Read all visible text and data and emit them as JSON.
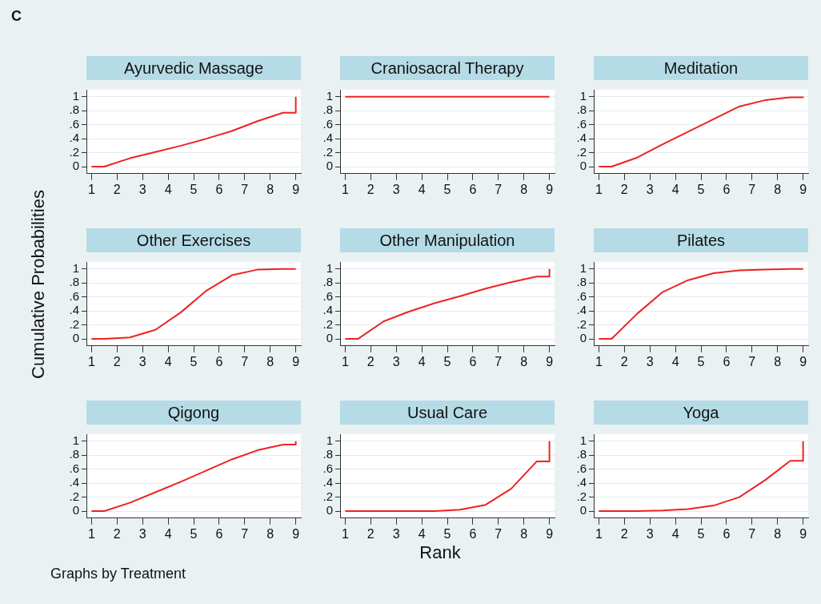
{
  "chart_data": [
    {
      "type": "line",
      "title": "Ayurvedic Massage",
      "annotations": [
        "C"
      ],
      "xlim": [
        0.8,
        9.2
      ],
      "xticks": [
        1,
        2,
        3,
        4,
        5,
        6,
        7,
        8,
        9
      ],
      "ylim": [
        -0.1,
        1.1
      ],
      "yticks": [
        {
          "value": 0,
          "label": "0"
        },
        {
          "value": 0.2,
          "label": ".2"
        },
        {
          "value": 0.4,
          "label": ".4"
        },
        {
          "value": 0.6,
          "label": ".6"
        },
        {
          "value": 0.8,
          "label": ".8"
        },
        {
          "value": 1,
          "label": "1"
        }
      ],
      "grid": "y",
      "legend": false,
      "marker": "none",
      "series": [
        {
          "color": "#ee2222",
          "x": [
            1,
            1.5,
            2.5,
            3.5,
            4.5,
            5.5,
            6.5,
            7.5,
            8.5,
            9,
            9
          ],
          "values": [
            0,
            0,
            0.12,
            0.21,
            0.3,
            0.4,
            0.51,
            0.65,
            0.77,
            0.77,
            1
          ]
        }
      ]
    },
    {
      "type": "line",
      "title": "Craniosacral Therapy",
      "xlim": [
        0.8,
        9.2
      ],
      "xticks": [
        1,
        2,
        3,
        4,
        5,
        6,
        7,
        8,
        9
      ],
      "ylim": [
        -0.1,
        1.1
      ],
      "yticks": [
        {
          "value": 0,
          "label": "0"
        },
        {
          "value": 0.2,
          "label": ".2"
        },
        {
          "value": 0.4,
          "label": ".4"
        },
        {
          "value": 0.6,
          "label": ".6"
        },
        {
          "value": 0.8,
          "label": ".8"
        },
        {
          "value": 1,
          "label": "1"
        }
      ],
      "grid": "y",
      "legend": false,
      "marker": "none",
      "series": [
        {
          "color": "#ee2222",
          "x": [
            1,
            1.5,
            2.5,
            3.5,
            4.5,
            5.5,
            6.5,
            7.5,
            8.5,
            9
          ],
          "values": [
            1,
            1,
            1,
            1,
            1,
            1,
            1,
            1,
            1,
            1
          ]
        }
      ]
    },
    {
      "type": "line",
      "title": "Meditation",
      "xlim": [
        0.8,
        9.2
      ],
      "xticks": [
        1,
        2,
        3,
        4,
        5,
        6,
        7,
        8,
        9
      ],
      "ylim": [
        -0.1,
        1.1
      ],
      "yticks": [
        {
          "value": 0,
          "label": "0"
        },
        {
          "value": 0.2,
          "label": ".2"
        },
        {
          "value": 0.4,
          "label": ".4"
        },
        {
          "value": 0.6,
          "label": ".6"
        },
        {
          "value": 0.8,
          "label": ".8"
        },
        {
          "value": 1,
          "label": "1"
        }
      ],
      "grid": "y",
      "legend": false,
      "marker": "none",
      "series": [
        {
          "color": "#ee2222",
          "x": [
            1,
            1.5,
            2.5,
            3.5,
            4.5,
            5.5,
            6.5,
            7.5,
            8.5,
            9,
            9
          ],
          "values": [
            0,
            0,
            0.13,
            0.32,
            0.5,
            0.68,
            0.86,
            0.95,
            0.99,
            0.99,
            1
          ]
        }
      ]
    },
    {
      "type": "line",
      "title": "Other Exercises",
      "ylabel": "Cumulative Probabilities",
      "xlim": [
        0.8,
        9.2
      ],
      "xticks": [
        1,
        2,
        3,
        4,
        5,
        6,
        7,
        8,
        9
      ],
      "ylim": [
        -0.1,
        1.1
      ],
      "yticks": [
        {
          "value": 0,
          "label": "0"
        },
        {
          "value": 0.2,
          "label": ".2"
        },
        {
          "value": 0.4,
          "label": ".4"
        },
        {
          "value": 0.6,
          "label": ".6"
        },
        {
          "value": 0.8,
          "label": ".8"
        },
        {
          "value": 1,
          "label": "1"
        }
      ],
      "grid": "y",
      "legend": false,
      "marker": "none",
      "series": [
        {
          "color": "#ee2222",
          "x": [
            1,
            1.5,
            2.5,
            3.5,
            4.5,
            5.5,
            6.5,
            7.5,
            8.5,
            9
          ],
          "values": [
            0,
            0,
            0.02,
            0.13,
            0.38,
            0.69,
            0.91,
            0.99,
            1,
            1
          ]
        }
      ]
    },
    {
      "type": "line",
      "title": "Other Manipulation",
      "xlim": [
        0.8,
        9.2
      ],
      "xticks": [
        1,
        2,
        3,
        4,
        5,
        6,
        7,
        8,
        9
      ],
      "ylim": [
        -0.1,
        1.1
      ],
      "yticks": [
        {
          "value": 0,
          "label": "0"
        },
        {
          "value": 0.2,
          "label": ".2"
        },
        {
          "value": 0.4,
          "label": ".4"
        },
        {
          "value": 0.6,
          "label": ".6"
        },
        {
          "value": 0.8,
          "label": ".8"
        },
        {
          "value": 1,
          "label": "1"
        }
      ],
      "grid": "y",
      "legend": false,
      "marker": "none",
      "series": [
        {
          "color": "#ee2222",
          "x": [
            1,
            1.5,
            2.5,
            3.5,
            4.5,
            5.5,
            6.5,
            7.5,
            8.5,
            9,
            9
          ],
          "values": [
            0,
            0,
            0.25,
            0.39,
            0.51,
            0.61,
            0.72,
            0.81,
            0.89,
            0.89,
            1
          ]
        }
      ]
    },
    {
      "type": "line",
      "title": "Pilates",
      "xlim": [
        0.8,
        9.2
      ],
      "xticks": [
        1,
        2,
        3,
        4,
        5,
        6,
        7,
        8,
        9
      ],
      "ylim": [
        -0.1,
        1.1
      ],
      "yticks": [
        {
          "value": 0,
          "label": "0"
        },
        {
          "value": 0.2,
          "label": ".2"
        },
        {
          "value": 0.4,
          "label": ".4"
        },
        {
          "value": 0.6,
          "label": ".6"
        },
        {
          "value": 0.8,
          "label": ".8"
        },
        {
          "value": 1,
          "label": "1"
        }
      ],
      "grid": "y",
      "legend": false,
      "marker": "none",
      "series": [
        {
          "color": "#ee2222",
          "x": [
            1,
            1.5,
            2.5,
            3.5,
            4.5,
            5.5,
            6.5,
            7.5,
            8.5,
            9
          ],
          "values": [
            0,
            0,
            0.36,
            0.67,
            0.84,
            0.94,
            0.98,
            0.99,
            1,
            1
          ]
        }
      ]
    },
    {
      "type": "line",
      "title": "Qigong",
      "annotations": [
        "Graphs by Treatment"
      ],
      "xlim": [
        0.8,
        9.2
      ],
      "xticks": [
        1,
        2,
        3,
        4,
        5,
        6,
        7,
        8,
        9
      ],
      "ylim": [
        -0.1,
        1.1
      ],
      "yticks": [
        {
          "value": 0,
          "label": "0"
        },
        {
          "value": 0.2,
          "label": ".2"
        },
        {
          "value": 0.4,
          "label": ".4"
        },
        {
          "value": 0.6,
          "label": ".6"
        },
        {
          "value": 0.8,
          "label": ".8"
        },
        {
          "value": 1,
          "label": "1"
        }
      ],
      "grid": "y",
      "legend": false,
      "marker": "none",
      "series": [
        {
          "color": "#ee2222",
          "x": [
            1,
            1.5,
            2.5,
            3.5,
            4.5,
            5.5,
            6.5,
            7.5,
            8.5,
            9,
            9
          ],
          "values": [
            0,
            0,
            0.12,
            0.27,
            0.42,
            0.58,
            0.74,
            0.87,
            0.95,
            0.95,
            1
          ]
        }
      ]
    },
    {
      "type": "line",
      "title": "Usual Care",
      "xlabel": "Rank",
      "xlim": [
        0.8,
        9.2
      ],
      "xticks": [
        1,
        2,
        3,
        4,
        5,
        6,
        7,
        8,
        9
      ],
      "ylim": [
        -0.1,
        1.1
      ],
      "yticks": [
        {
          "value": 0,
          "label": "0"
        },
        {
          "value": 0.2,
          "label": ".2"
        },
        {
          "value": 0.4,
          "label": ".4"
        },
        {
          "value": 0.6,
          "label": ".6"
        },
        {
          "value": 0.8,
          "label": ".8"
        },
        {
          "value": 1,
          "label": "1"
        }
      ],
      "grid": "y",
      "legend": false,
      "marker": "none",
      "series": [
        {
          "color": "#ee2222",
          "x": [
            1,
            1.5,
            2.5,
            3.5,
            4.5,
            5.5,
            6.5,
            7.5,
            8.5,
            9,
            9
          ],
          "values": [
            0,
            0,
            0,
            0,
            0,
            0.02,
            0.09,
            0.32,
            0.71,
            0.71,
            1
          ]
        }
      ]
    },
    {
      "type": "line",
      "title": "Yoga",
      "xlim": [
        0.8,
        9.2
      ],
      "xticks": [
        1,
        2,
        3,
        4,
        5,
        6,
        7,
        8,
        9
      ],
      "ylim": [
        -0.1,
        1.1
      ],
      "yticks": [
        {
          "value": 0,
          "label": "0"
        },
        {
          "value": 0.2,
          "label": ".2"
        },
        {
          "value": 0.4,
          "label": ".4"
        },
        {
          "value": 0.6,
          "label": ".6"
        },
        {
          "value": 0.8,
          "label": ".8"
        },
        {
          "value": 1,
          "label": "1"
        }
      ],
      "grid": "y",
      "legend": false,
      "marker": "none",
      "series": [
        {
          "color": "#ee2222",
          "x": [
            1,
            1.5,
            2.5,
            3.5,
            4.5,
            5.5,
            6.5,
            7.5,
            8.5,
            9,
            9
          ],
          "values": [
            0,
            0,
            0,
            0.01,
            0.03,
            0.08,
            0.2,
            0.44,
            0.72,
            0.72,
            1
          ]
        }
      ]
    }
  ]
}
